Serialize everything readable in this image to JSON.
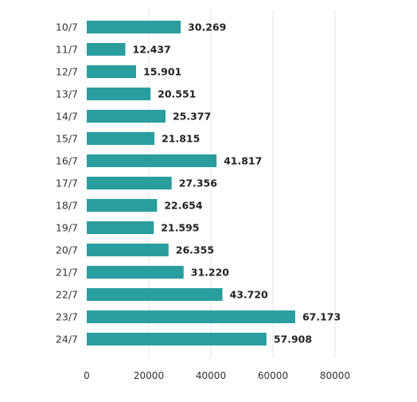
{
  "chart_data": {
    "type": "bar",
    "orientation": "horizontal",
    "categories": [
      "10/7",
      "11/7",
      "12/7",
      "13/7",
      "14/7",
      "15/7",
      "16/7",
      "17/7",
      "18/7",
      "19/7",
      "20/7",
      "21/7",
      "22/7",
      "23/7",
      "24/7"
    ],
    "values": [
      30269,
      12437,
      15901,
      20551,
      25377,
      21815,
      41817,
      27356,
      22654,
      21595,
      26355,
      31220,
      43720,
      67173,
      57908
    ],
    "value_labels": [
      "30.269",
      "12.437",
      "15.901",
      "20.551",
      "25.377",
      "21.815",
      "41.817",
      "27.356",
      "22.654",
      "21.595",
      "26.355",
      "31.220",
      "43.720",
      "67.173",
      "57.908"
    ],
    "x_ticks": [
      0,
      20000,
      40000,
      60000,
      80000
    ],
    "x_tick_labels": [
      "0",
      "20000",
      "40000",
      "60000",
      "80000"
    ],
    "xlim": [
      0,
      80000
    ],
    "grid": true,
    "bar_color": "#2a9d9f",
    "title": "",
    "xlabel": "",
    "ylabel": ""
  }
}
